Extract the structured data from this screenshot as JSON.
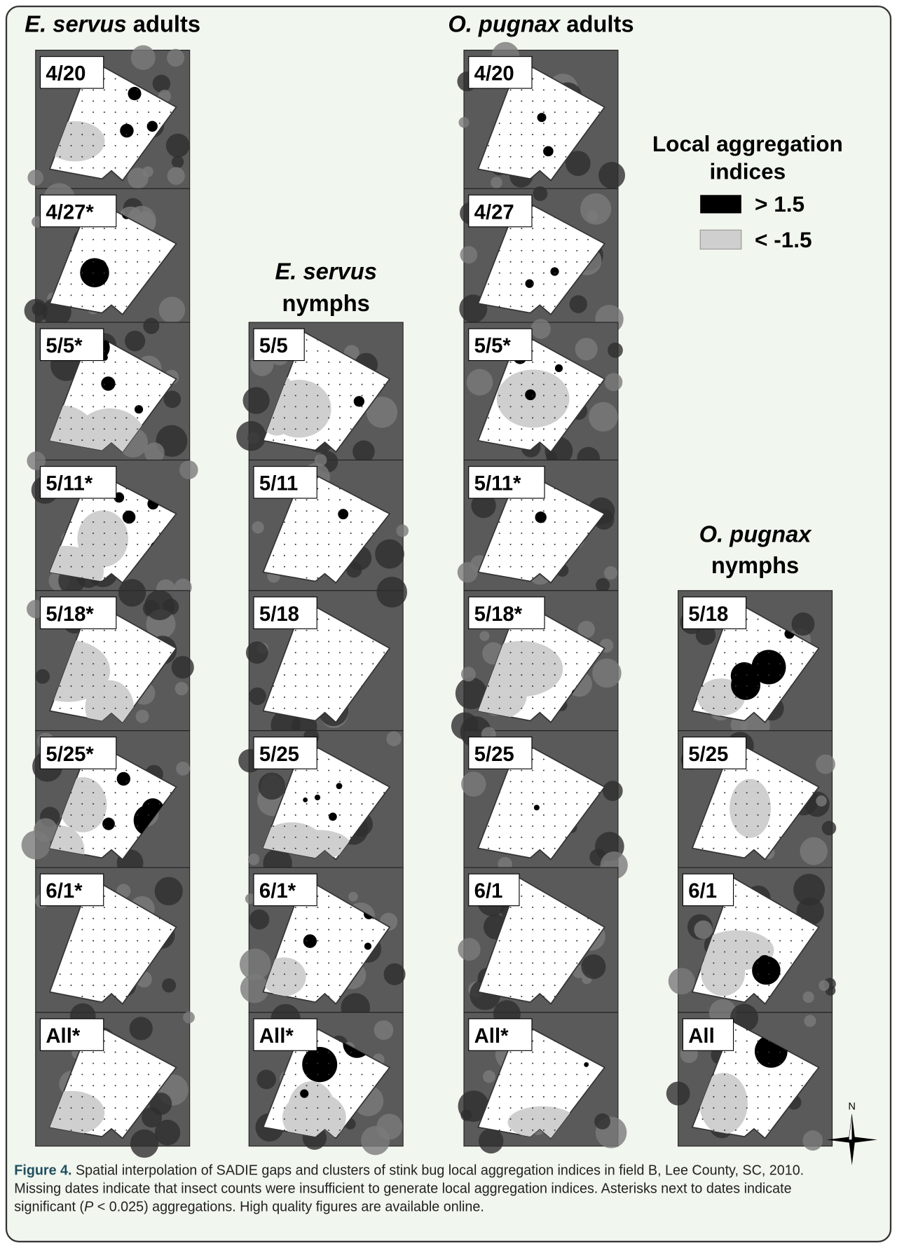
{
  "columns": [
    {
      "species": "E. servus",
      "stage": "adults",
      "panels": [
        "4/20",
        "4/27*",
        "5/5*",
        "5/11*",
        "5/18*",
        "5/25*",
        "6/1*",
        "All*"
      ]
    },
    {
      "species": "E. servus",
      "stage": "nymphs",
      "panels": [
        "5/5",
        "5/11",
        "5/18",
        "5/25",
        "6/1*",
        "All*"
      ]
    },
    {
      "species": "O. pugnax",
      "stage": "adults",
      "panels": [
        "4/20",
        "4/27",
        "5/5*",
        "5/11*",
        "5/18*",
        "5/25",
        "6/1",
        "All*"
      ]
    },
    {
      "species": "O. pugnax",
      "stage": "nymphs",
      "panels": [
        "5/18",
        "5/25",
        "6/1",
        "All"
      ]
    }
  ],
  "legend": {
    "title_1": "Local aggregation",
    "title_2": "indices",
    "high": "> 1.5",
    "low": "< -1.5"
  },
  "compass": "N",
  "caption": {
    "label": "Figure 4.",
    "text_1": " Spatial interpolation of SADIE gaps and clusters of stink bug local aggregation indices in field B, Lee County, SC, 2010.",
    "text_2": "Missing dates indicate that insect counts were insufficient to generate local aggregation indices. Asterisks next to dates indicate",
    "text_3": "significant (",
    "italic": "P",
    "text_4": " < 0.025) aggregations. High quality figures are available online."
  }
}
